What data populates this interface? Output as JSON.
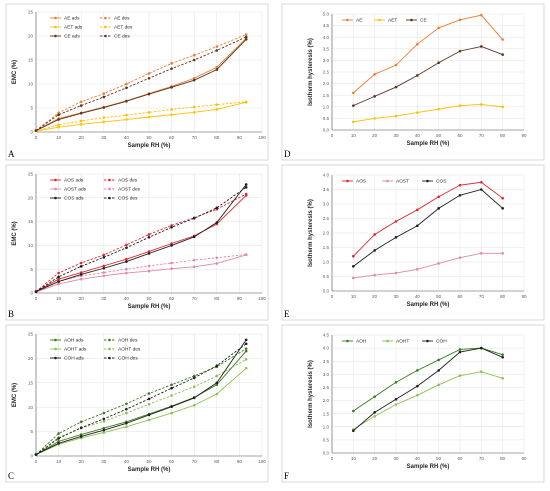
{
  "chart_data": [
    {
      "panel": "A",
      "type": "line",
      "xlabel": "Sample RH (%)",
      "ylabel": "EMC (%)",
      "xlim": [
        0,
        100
      ],
      "ylim": [
        0,
        25
      ],
      "xticks": [
        0,
        10,
        20,
        30,
        40,
        50,
        60,
        70,
        80,
        90,
        100
      ],
      "yticks": [
        0,
        5,
        10,
        15,
        20,
        25
      ],
      "grid": true,
      "legend": "top-left",
      "series": [
        {
          "name": "AE ads",
          "color": "#ed7d31",
          "dashed": false,
          "x": [
            0,
            10,
            20,
            30,
            40,
            50,
            60,
            70,
            80,
            93
          ],
          "y": [
            0.3,
            2.8,
            4.0,
            5.2,
            6.5,
            8.0,
            9.5,
            11.2,
            13.5,
            19.5
          ]
        },
        {
          "name": "AE des",
          "color": "#ed7d31",
          "dashed": true,
          "x": [
            0,
            10,
            20,
            30,
            40,
            50,
            60,
            70,
            80,
            93
          ],
          "y": [
            0.3,
            4.0,
            6.3,
            8.0,
            10.0,
            12.2,
            14.3,
            16.0,
            17.8,
            20.3
          ]
        },
        {
          "name": "AET ads",
          "color": "#ffc000",
          "dashed": false,
          "x": [
            0,
            10,
            20,
            30,
            40,
            50,
            60,
            70,
            80,
            93
          ],
          "y": [
            0.2,
            1.0,
            1.6,
            2.1,
            2.6,
            3.1,
            3.6,
            4.1,
            4.7,
            6.2
          ]
        },
        {
          "name": "AET des",
          "color": "#ffc000",
          "dashed": true,
          "x": [
            0,
            10,
            20,
            30,
            40,
            50,
            60,
            70,
            80,
            93
          ],
          "y": [
            0.2,
            1.5,
            2.3,
            3.0,
            3.5,
            4.1,
            4.7,
            5.2,
            5.7,
            6.3
          ]
        },
        {
          "name": "CE ads",
          "color": "#5a3421",
          "dashed": false,
          "x": [
            0,
            10,
            20,
            30,
            40,
            50,
            60,
            70,
            80,
            93
          ],
          "y": [
            0.3,
            2.6,
            3.9,
            5.1,
            6.4,
            7.9,
            9.3,
            10.8,
            13.0,
            19.3
          ]
        },
        {
          "name": "CE des",
          "color": "#5a3421",
          "dashed": true,
          "x": [
            0,
            10,
            20,
            30,
            40,
            50,
            60,
            70,
            80,
            93
          ],
          "y": [
            0.3,
            3.6,
            5.5,
            7.3,
            9.2,
            11.2,
            13.2,
            15.0,
            17.0,
            19.8
          ]
        }
      ]
    },
    {
      "panel": "B",
      "type": "line",
      "xlabel": "Sample RH (%)",
      "ylabel": "EMC (%)",
      "xlim": [
        0,
        100
      ],
      "ylim": [
        0,
        25
      ],
      "xticks": [
        0,
        10,
        20,
        30,
        40,
        50,
        60,
        70,
        80,
        90,
        100
      ],
      "yticks": [
        0,
        5,
        10,
        15,
        20,
        25
      ],
      "grid": true,
      "legend": "top-left",
      "series": [
        {
          "name": "AOS ads",
          "color": "#e3262c",
          "dashed": false,
          "x": [
            0,
            10,
            20,
            30,
            40,
            50,
            60,
            70,
            80,
            93
          ],
          "y": [
            0.3,
            2.9,
            4.3,
            5.7,
            7.1,
            8.7,
            10.4,
            12.0,
            14.5,
            20.5
          ]
        },
        {
          "name": "AOS des",
          "color": "#e3262c",
          "dashed": true,
          "x": [
            0,
            10,
            20,
            30,
            40,
            50,
            60,
            70,
            80,
            93
          ],
          "y": [
            0.3,
            4.2,
            6.3,
            8.0,
            10.1,
            12.3,
            14.2,
            15.8,
            17.6,
            20.8
          ]
        },
        {
          "name": "AOST ads",
          "color": "#e18aa1",
          "dashed": false,
          "x": [
            0,
            10,
            20,
            30,
            40,
            50,
            60,
            70,
            80,
            93
          ],
          "y": [
            0.2,
            1.9,
            2.9,
            3.6,
            4.2,
            4.6,
            5.1,
            5.5,
            6.2,
            8.0
          ]
        },
        {
          "name": "AOST des",
          "color": "#e18aa1",
          "dashed": true,
          "x": [
            0,
            10,
            20,
            30,
            40,
            50,
            60,
            70,
            80,
            93
          ],
          "y": [
            0.2,
            2.4,
            3.6,
            4.3,
            5.0,
            5.7,
            6.3,
            6.9,
            7.4,
            8.1
          ]
        },
        {
          "name": "COS ads",
          "color": "#1f1f1f",
          "dashed": false,
          "x": [
            0,
            10,
            20,
            30,
            40,
            50,
            60,
            70,
            80,
            93
          ],
          "y": [
            0.3,
            2.4,
            3.9,
            5.2,
            6.6,
            8.3,
            10.0,
            11.8,
            14.8,
            22.8
          ]
        },
        {
          "name": "COS des",
          "color": "#1f1f1f",
          "dashed": true,
          "x": [
            0,
            10,
            20,
            30,
            40,
            50,
            60,
            70,
            80,
            93
          ],
          "y": [
            0.3,
            3.4,
            5.6,
            7.5,
            9.5,
            11.7,
            13.8,
            15.7,
            17.9,
            22.2
          ]
        }
      ]
    },
    {
      "panel": "C",
      "type": "line",
      "xlabel": "Sample RH (%)",
      "ylabel": "EMC (%)",
      "xlim": [
        0,
        100
      ],
      "ylim": [
        0,
        25
      ],
      "xticks": [
        0,
        10,
        20,
        30,
        40,
        50,
        60,
        70,
        80,
        90,
        100
      ],
      "yticks": [
        0,
        5,
        10,
        15,
        20,
        25
      ],
      "grid": true,
      "legend": "top-left",
      "series": [
        {
          "name": "AOH ads",
          "color": "#3b7a1e",
          "dashed": false,
          "x": [
            0,
            10,
            20,
            30,
            40,
            50,
            60,
            70,
            80,
            93
          ],
          "y": [
            0.3,
            3.0,
            4.4,
            5.7,
            7.0,
            8.6,
            10.2,
            12.0,
            14.6,
            21.5
          ]
        },
        {
          "name": "AOH des",
          "color": "#3b7a1e",
          "dashed": true,
          "x": [
            0,
            10,
            20,
            30,
            40,
            50,
            60,
            70,
            80,
            93
          ],
          "y": [
            0.3,
            4.6,
            7.0,
            8.8,
            10.7,
            12.8,
            14.6,
            16.4,
            18.3,
            22.0
          ]
        },
        {
          "name": "AOHT ads",
          "color": "#8cc152",
          "dashed": false,
          "x": [
            0,
            10,
            20,
            30,
            40,
            50,
            60,
            70,
            80,
            93
          ],
          "y": [
            0.3,
            2.4,
            3.7,
            4.8,
            6.0,
            7.4,
            8.8,
            10.4,
            12.7,
            18.0
          ]
        },
        {
          "name": "AOHT des",
          "color": "#8cc152",
          "dashed": true,
          "x": [
            0,
            10,
            20,
            30,
            40,
            50,
            60,
            70,
            80,
            93
          ],
          "y": [
            0.3,
            3.8,
            5.7,
            7.1,
            8.8,
            10.6,
            12.4,
            14.2,
            16.4,
            19.8
          ]
        },
        {
          "name": "COH ads",
          "color": "#1f1f1f",
          "dashed": false,
          "x": [
            0,
            10,
            20,
            30,
            40,
            50,
            60,
            70,
            80,
            93
          ],
          "y": [
            0.3,
            2.6,
            4.0,
            5.3,
            6.7,
            8.4,
            10.1,
            11.9,
            15.0,
            23.8
          ]
        },
        {
          "name": "COH des",
          "color": "#1f1f1f",
          "dashed": true,
          "x": [
            0,
            10,
            20,
            30,
            40,
            50,
            60,
            70,
            80,
            93
          ],
          "y": [
            0.3,
            3.6,
            5.8,
            7.6,
            9.6,
            11.7,
            13.9,
            16.0,
            18.5,
            23.0
          ]
        }
      ]
    },
    {
      "panel": "D",
      "type": "line",
      "xlabel": "Sample RH (%)",
      "ylabel": "Isotherm hysteresis (%)",
      "xlim": [
        0,
        90
      ],
      "ylim": [
        0,
        5
      ],
      "xticks": [
        0,
        10,
        20,
        30,
        40,
        50,
        60,
        70,
        80,
        90
      ],
      "yticks": [
        0.0,
        0.5,
        1.0,
        1.5,
        2.0,
        2.5,
        3.0,
        3.5,
        4.0,
        4.5,
        5.0
      ],
      "ytick_labels": [
        "0.0",
        "0.5",
        "1.0",
        "1.5",
        "2.0",
        "2.5",
        "3.0",
        "3.5",
        "4.0",
        "4.5",
        "5.0"
      ],
      "grid": true,
      "legend": "top-left",
      "series": [
        {
          "name": "AE",
          "color": "#ed7d31",
          "dashed": false,
          "x": [
            10,
            20,
            30,
            40,
            50,
            60,
            70,
            80
          ],
          "y": [
            1.6,
            2.4,
            2.8,
            3.7,
            4.4,
            4.75,
            4.95,
            3.9
          ]
        },
        {
          "name": "AET",
          "color": "#ffc000",
          "dashed": false,
          "x": [
            10,
            20,
            30,
            40,
            50,
            60,
            70,
            80
          ],
          "y": [
            0.35,
            0.5,
            0.6,
            0.75,
            0.9,
            1.05,
            1.1,
            1.0
          ]
        },
        {
          "name": "CE",
          "color": "#5a3421",
          "dashed": false,
          "x": [
            10,
            20,
            30,
            40,
            50,
            60,
            70,
            80
          ],
          "y": [
            1.05,
            1.45,
            1.85,
            2.35,
            2.9,
            3.4,
            3.6,
            3.25
          ]
        }
      ]
    },
    {
      "panel": "E",
      "type": "line",
      "xlabel": "Sample RH (%)",
      "ylabel": "Isotherm hysteresis (%)",
      "xlim": [
        0,
        90
      ],
      "ylim": [
        0,
        4
      ],
      "xticks": [
        0,
        10,
        20,
        30,
        40,
        50,
        60,
        70,
        80,
        90
      ],
      "yticks": [
        0.0,
        0.5,
        1.0,
        1.5,
        2.0,
        2.5,
        3.0,
        3.5,
        4.0
      ],
      "ytick_labels": [
        "0.0",
        "0.5",
        "1.0",
        "1.5",
        "2.0",
        "2.5",
        "3.0",
        "3.5",
        "4.0"
      ],
      "grid": true,
      "legend": "top-left",
      "series": [
        {
          "name": "AOS",
          "color": "#e3262c",
          "dashed": false,
          "x": [
            10,
            20,
            30,
            40,
            50,
            60,
            70,
            80
          ],
          "y": [
            1.2,
            1.95,
            2.4,
            2.8,
            3.25,
            3.65,
            3.75,
            3.2
          ]
        },
        {
          "name": "AOST",
          "color": "#e18aa1",
          "dashed": false,
          "x": [
            10,
            20,
            30,
            40,
            50,
            60,
            70,
            80
          ],
          "y": [
            0.45,
            0.55,
            0.62,
            0.75,
            0.95,
            1.15,
            1.3,
            1.3
          ]
        },
        {
          "name": "COS",
          "color": "#1f1f1f",
          "dashed": false,
          "x": [
            10,
            20,
            30,
            40,
            50,
            60,
            70,
            80
          ],
          "y": [
            0.85,
            1.4,
            1.85,
            2.25,
            2.85,
            3.3,
            3.5,
            2.85
          ]
        }
      ]
    },
    {
      "panel": "F",
      "type": "line",
      "xlabel": "Sample RH (%)",
      "ylabel": "Isotherm hysteresis (%)",
      "xlim": [
        0,
        90
      ],
      "ylim": [
        0,
        4.5
      ],
      "xticks": [
        0,
        10,
        20,
        30,
        40,
        50,
        60,
        70,
        80,
        90
      ],
      "yticks": [
        0.0,
        0.5,
        1.0,
        1.5,
        2.0,
        2.5,
        3.0,
        3.5,
        4.0,
        4.5
      ],
      "ytick_labels": [
        "0.0",
        "0.5",
        "1.0",
        "1.5",
        "2.0",
        "2.5",
        "3.0",
        "3.5",
        "4.0",
        "4.5"
      ],
      "grid": true,
      "legend": "top-left",
      "series": [
        {
          "name": "AOH",
          "color": "#3b7a1e",
          "dashed": false,
          "x": [
            10,
            20,
            30,
            40,
            50,
            60,
            70,
            80
          ],
          "y": [
            1.6,
            2.15,
            2.7,
            3.15,
            3.55,
            3.95,
            4.0,
            3.75
          ]
        },
        {
          "name": "AOHT",
          "color": "#8cc152",
          "dashed": false,
          "x": [
            10,
            20,
            30,
            40,
            50,
            60,
            70,
            80
          ],
          "y": [
            0.9,
            1.4,
            1.85,
            2.2,
            2.6,
            2.95,
            3.1,
            2.85
          ]
        },
        {
          "name": "COH",
          "color": "#1f1f1f",
          "dashed": false,
          "x": [
            10,
            20,
            30,
            40,
            50,
            60,
            70,
            80
          ],
          "y": [
            0.85,
            1.55,
            2.05,
            2.55,
            3.15,
            3.85,
            4.0,
            3.65
          ]
        }
      ]
    }
  ]
}
